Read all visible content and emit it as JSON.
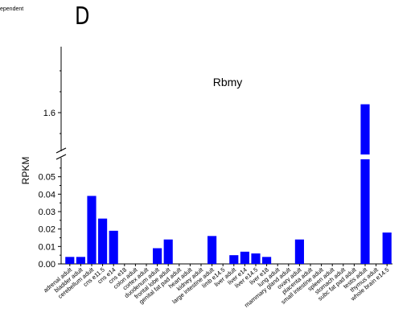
{
  "panel_label": "D",
  "corner_text": "ependent",
  "chart_data": {
    "type": "bar",
    "title": "Rbmy",
    "xlabel": "",
    "ylabel": "RPKM",
    "axis_break": true,
    "lower_ylim": [
      0,
      0.06
    ],
    "lower_yticks": [
      "0.00",
      "0.01",
      "0.02",
      "0.03",
      "0.04",
      "0.05"
    ],
    "upper_yticks": [
      "1.6"
    ],
    "grid": false,
    "legend": "none",
    "bar_color": "#0000ff",
    "categories": [
      "adrenal adult",
      "bladder adult",
      "cerebellum adult",
      "cns e11.5",
      "cns e14",
      "cns e18",
      "colon adult",
      "cortex adult",
      "duodenum adult",
      "frontal lobe adult",
      "genital fat pad adult",
      "heart adult",
      "kidney adult",
      "large intestine adult",
      "limb e14.5",
      "liver adult",
      "liver e14",
      "liver e14.5",
      "liver e18",
      "lung adult",
      "mammary gland adult",
      "ovary adult",
      "placenta adult",
      "small intestine adult",
      "spleen adult",
      "stomach adult",
      "subc fat pad adult",
      "testis adult",
      "thymus adult",
      "whole brain e14.5"
    ],
    "values": [
      0.004,
      0.004,
      0.039,
      0.026,
      0.019,
      0,
      0,
      0,
      0.009,
      0.014,
      0,
      0,
      0,
      0.016,
      0,
      0.005,
      0.007,
      0.006,
      0.004,
      0,
      0,
      0.014,
      0,
      0,
      0,
      0,
      0,
      1.62,
      0,
      0.018
    ]
  }
}
